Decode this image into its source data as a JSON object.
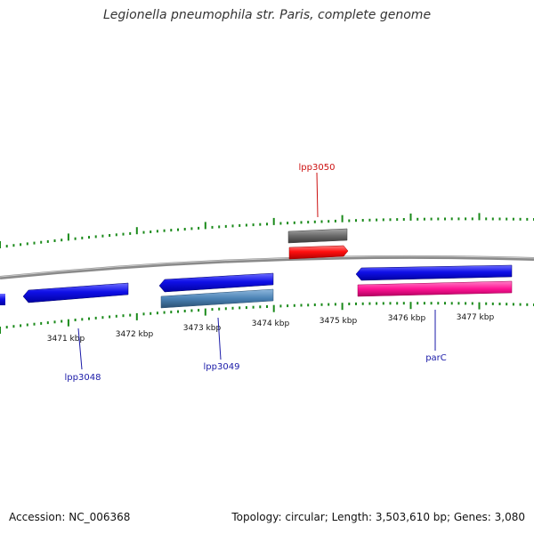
{
  "title": "Legionella pneumophila str. Paris, complete genome",
  "footer": {
    "accession": "Accession: NC_006368",
    "summary": "Topology: circular; Length: 3,503,610 bp; Genes: 3,080"
  },
  "colors": {
    "backbone": "#8a8a8a",
    "tick": "#1a8a1a",
    "forward_gene": "#1010e8",
    "reverse_gene_steel": "#4a82b4",
    "rna": "#ff1010",
    "pseudo": "#6a6a6a",
    "parC": "#ff1493",
    "label_blue": "#1a1aa8",
    "label_red": "#cc1010"
  },
  "kbp_labels": [
    "3471 kbp",
    "3472 kbp",
    "3473 kbp",
    "3474 kbp",
    "3475 kbp",
    "3476 kbp",
    "3477 kbp"
  ],
  "gene_labels": {
    "lpp3050": "lpp3050",
    "lpp3048": "lpp3048",
    "lpp3049": "lpp3049",
    "parC": "parC"
  }
}
